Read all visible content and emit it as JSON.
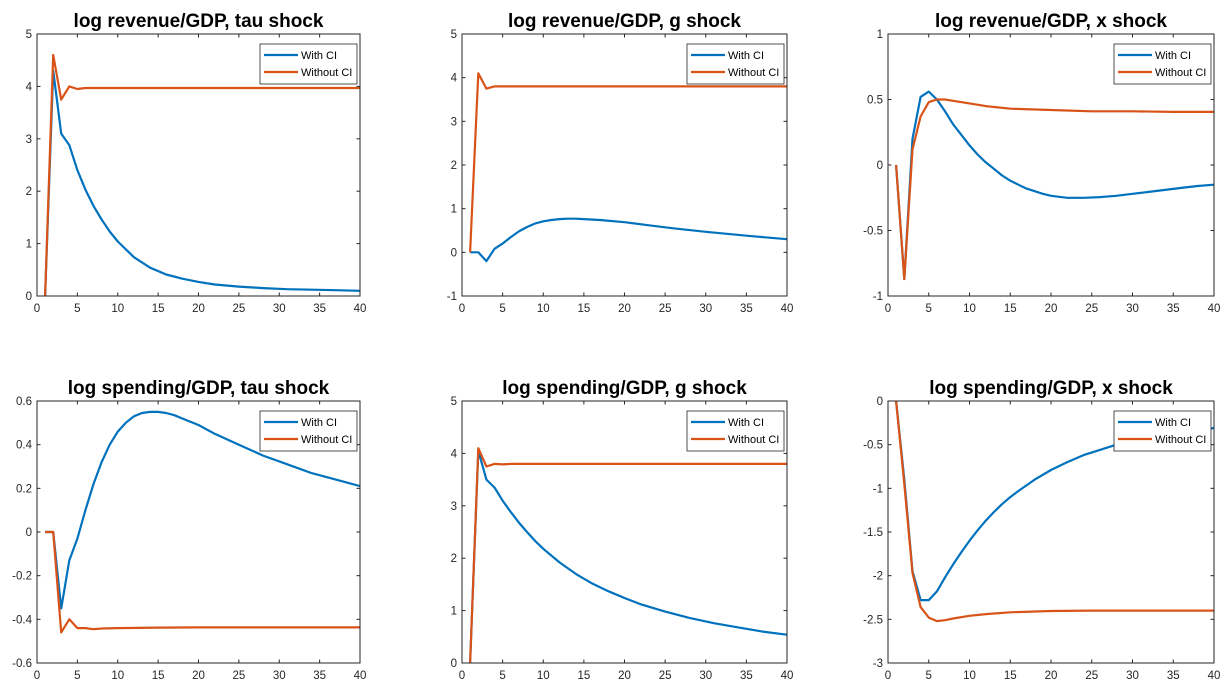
{
  "colors": {
    "with_ci": "#0072BD",
    "without_ci": "#D95319",
    "axes": "#262626"
  },
  "chart_data": [
    {
      "type": "line",
      "title": "log revenue/GDP, tau shock",
      "xlim": [
        0,
        40
      ],
      "ylim": [
        0,
        5
      ],
      "xticks": [
        0,
        5,
        10,
        15,
        20,
        25,
        30,
        35,
        40
      ],
      "yticks": [
        0,
        1,
        2,
        3,
        4,
        5
      ],
      "xticklabels": [
        "0",
        "5",
        "10",
        "15",
        "20",
        "25",
        "30",
        "35",
        "40"
      ],
      "yticklabels": [
        "0",
        "1",
        "2",
        "3",
        "4",
        "5"
      ],
      "legend": "top-right",
      "series": [
        {
          "name": "With CI",
          "x": [
            1,
            2,
            3,
            4,
            5,
            6,
            7,
            8,
            9,
            10,
            12,
            14,
            16,
            18,
            20,
            22,
            25,
            28,
            31,
            34,
            37,
            40
          ],
          "values": [
            0,
            4.3,
            3.1,
            2.88,
            2.4,
            2.03,
            1.72,
            1.46,
            1.23,
            1.04,
            0.74,
            0.54,
            0.41,
            0.33,
            0.27,
            0.22,
            0.18,
            0.15,
            0.13,
            0.12,
            0.11,
            0.1
          ]
        },
        {
          "name": "Without CI",
          "x": [
            1,
            2,
            3,
            4,
            5,
            6,
            8,
            10,
            15,
            20,
            25,
            30,
            35,
            40
          ],
          "values": [
            0,
            4.6,
            3.75,
            4.0,
            3.95,
            3.97,
            3.97,
            3.97,
            3.97,
            3.97,
            3.97,
            3.97,
            3.97,
            3.97
          ]
        }
      ]
    },
    {
      "type": "line",
      "title": "log revenue/GDP, g shock",
      "xlim": [
        0,
        40
      ],
      "ylim": [
        -1,
        5
      ],
      "xticks": [
        0,
        5,
        10,
        15,
        20,
        25,
        30,
        35,
        40
      ],
      "yticks": [
        -1,
        0,
        1,
        2,
        3,
        4,
        5
      ],
      "xticklabels": [
        "0",
        "5",
        "10",
        "15",
        "20",
        "25",
        "30",
        "35",
        "40"
      ],
      "yticklabels": [
        "-1",
        "0",
        "1",
        "2",
        "3",
        "4",
        "5"
      ],
      "legend": "top-right",
      "series": [
        {
          "name": "With CI",
          "x": [
            1,
            2,
            3,
            4,
            5,
            6,
            7,
            8,
            9,
            10,
            11,
            12,
            13,
            14,
            15,
            17,
            20,
            23,
            26,
            30,
            35,
            40
          ],
          "values": [
            0,
            0,
            -0.2,
            0.08,
            0.2,
            0.35,
            0.48,
            0.58,
            0.66,
            0.71,
            0.74,
            0.76,
            0.77,
            0.77,
            0.76,
            0.74,
            0.69,
            0.62,
            0.55,
            0.47,
            0.38,
            0.3
          ]
        },
        {
          "name": "Without CI",
          "x": [
            1,
            2,
            3,
            4,
            5,
            10,
            20,
            30,
            40
          ],
          "values": [
            0,
            4.1,
            3.75,
            3.8,
            3.8,
            3.8,
            3.8,
            3.8,
            3.8
          ]
        }
      ]
    },
    {
      "type": "line",
      "title": "log revenue/GDP, x shock",
      "xlim": [
        0,
        40
      ],
      "ylim": [
        -1,
        1
      ],
      "xticks": [
        0,
        5,
        10,
        15,
        20,
        25,
        30,
        35,
        40
      ],
      "yticks": [
        -1,
        -0.5,
        0,
        0.5,
        1
      ],
      "xticklabels": [
        "0",
        "5",
        "10",
        "15",
        "20",
        "25",
        "30",
        "35",
        "40"
      ],
      "yticklabels": [
        "-1",
        "-0.5",
        "0",
        "0.5",
        "1"
      ],
      "legend": "top-right",
      "series": [
        {
          "name": "With CI",
          "x": [
            1,
            2,
            3,
            4,
            5,
            6,
            7,
            8,
            9,
            10,
            11,
            12,
            13,
            14,
            15,
            16,
            17,
            18,
            19,
            20,
            22,
            24,
            26,
            28,
            30,
            32,
            34,
            36,
            38,
            40
          ],
          "values": [
            0,
            -0.87,
            0.2,
            0.52,
            0.56,
            0.5,
            0.41,
            0.31,
            0.23,
            0.15,
            0.08,
            0.02,
            -0.03,
            -0.08,
            -0.12,
            -0.15,
            -0.18,
            -0.2,
            -0.22,
            -0.235,
            -0.25,
            -0.25,
            -0.245,
            -0.235,
            -0.22,
            -0.205,
            -0.19,
            -0.175,
            -0.16,
            -0.15
          ]
        },
        {
          "name": "Without CI",
          "x": [
            1,
            2,
            3,
            4,
            5,
            6,
            7,
            8,
            10,
            12,
            15,
            20,
            25,
            30,
            35,
            40
          ],
          "values": [
            0,
            -0.87,
            0.12,
            0.37,
            0.48,
            0.5,
            0.5,
            0.49,
            0.47,
            0.45,
            0.43,
            0.42,
            0.41,
            0.41,
            0.405,
            0.405
          ]
        }
      ]
    },
    {
      "type": "line",
      "title": "log spending/GDP, tau shock",
      "xlim": [
        0,
        40
      ],
      "ylim": [
        -0.6,
        0.6
      ],
      "xticks": [
        0,
        5,
        10,
        15,
        20,
        25,
        30,
        35,
        40
      ],
      "yticks": [
        -0.6,
        -0.4,
        -0.2,
        0,
        0.2,
        0.4,
        0.6
      ],
      "xticklabels": [
        "0",
        "5",
        "10",
        "15",
        "20",
        "25",
        "30",
        "35",
        "40"
      ],
      "yticklabels": [
        "-0.6",
        "-0.4",
        "-0.2",
        "0",
        "0.2",
        "0.4",
        "0.6"
      ],
      "legend": "top-right",
      "series": [
        {
          "name": "With CI",
          "x": [
            1,
            2,
            3,
            4,
            5,
            6,
            7,
            8,
            9,
            10,
            11,
            12,
            13,
            14,
            15,
            16,
            17,
            18,
            20,
            22,
            25,
            28,
            31,
            34,
            37,
            40
          ],
          "values": [
            0,
            0,
            -0.35,
            -0.13,
            -0.03,
            0.1,
            0.22,
            0.32,
            0.4,
            0.46,
            0.5,
            0.53,
            0.545,
            0.55,
            0.55,
            0.545,
            0.535,
            0.52,
            0.49,
            0.45,
            0.4,
            0.35,
            0.31,
            0.27,
            0.24,
            0.21
          ]
        },
        {
          "name": "Without CI",
          "x": [
            1,
            2,
            3,
            4,
            5,
            6,
            7,
            8,
            10,
            15,
            20,
            25,
            30,
            35,
            40
          ],
          "values": [
            0,
            0,
            -0.46,
            -0.4,
            -0.44,
            -0.44,
            -0.445,
            -0.442,
            -0.44,
            -0.438,
            -0.437,
            -0.437,
            -0.437,
            -0.437,
            -0.437
          ]
        }
      ]
    },
    {
      "type": "line",
      "title": "log spending/GDP, g shock",
      "xlim": [
        0,
        40
      ],
      "ylim": [
        0,
        5
      ],
      "xticks": [
        0,
        5,
        10,
        15,
        20,
        25,
        30,
        35,
        40
      ],
      "yticks": [
        0,
        1,
        2,
        3,
        4,
        5
      ],
      "xticklabels": [
        "0",
        "5",
        "10",
        "15",
        "20",
        "25",
        "30",
        "35",
        "40"
      ],
      "yticklabels": [
        "0",
        "1",
        "2",
        "3",
        "4",
        "5"
      ],
      "legend": "top-right",
      "series": [
        {
          "name": "With CI",
          "x": [
            1,
            2,
            3,
            4,
            5,
            6,
            7,
            8,
            9,
            10,
            12,
            14,
            16,
            18,
            20,
            22,
            25,
            28,
            31,
            34,
            37,
            40
          ],
          "values": [
            0,
            4.05,
            3.5,
            3.35,
            3.1,
            2.88,
            2.68,
            2.5,
            2.33,
            2.18,
            1.92,
            1.7,
            1.52,
            1.37,
            1.24,
            1.12,
            0.98,
            0.86,
            0.76,
            0.68,
            0.6,
            0.54
          ]
        },
        {
          "name": "Without CI",
          "x": [
            1,
            2,
            3,
            4,
            5,
            6,
            10,
            20,
            30,
            40
          ],
          "values": [
            0,
            4.1,
            3.75,
            3.8,
            3.79,
            3.8,
            3.8,
            3.8,
            3.8,
            3.8
          ]
        }
      ]
    },
    {
      "type": "line",
      "title": "log spending/GDP, x shock",
      "xlim": [
        0,
        40
      ],
      "ylim": [
        -3,
        0
      ],
      "xticks": [
        0,
        5,
        10,
        15,
        20,
        25,
        30,
        35,
        40
      ],
      "yticks": [
        -3,
        -2.5,
        -2,
        -1.5,
        -1,
        -0.5,
        0
      ],
      "xticklabels": [
        "0",
        "5",
        "10",
        "15",
        "20",
        "25",
        "30",
        "35",
        "40"
      ],
      "yticklabels": [
        "-3",
        "-2.5",
        "-2",
        "-1.5",
        "-1",
        "-0.5",
        "0"
      ],
      "legend": "top-right",
      "series": [
        {
          "name": "With CI",
          "x": [
            1,
            2,
            3,
            4,
            5,
            6,
            7,
            8,
            9,
            10,
            11,
            12,
            13,
            14,
            15,
            16,
            18,
            20,
            22,
            24,
            26,
            28,
            30,
            32,
            34,
            36,
            38,
            40
          ],
          "values": [
            0,
            -0.9,
            -1.95,
            -2.28,
            -2.28,
            -2.18,
            -2.02,
            -1.87,
            -1.73,
            -1.6,
            -1.48,
            -1.37,
            -1.27,
            -1.18,
            -1.1,
            -1.03,
            -0.9,
            -0.79,
            -0.7,
            -0.62,
            -0.56,
            -0.5,
            -0.45,
            -0.41,
            -0.38,
            -0.35,
            -0.33,
            -0.31
          ]
        },
        {
          "name": "Without CI",
          "x": [
            1,
            2,
            3,
            4,
            5,
            6,
            7,
            8,
            10,
            12,
            15,
            20,
            25,
            30,
            35,
            40
          ],
          "values": [
            0,
            -0.95,
            -1.97,
            -2.36,
            -2.48,
            -2.52,
            -2.51,
            -2.49,
            -2.46,
            -2.44,
            -2.42,
            -2.405,
            -2.4,
            -2.4,
            -2.4,
            -2.4
          ]
        }
      ]
    }
  ]
}
